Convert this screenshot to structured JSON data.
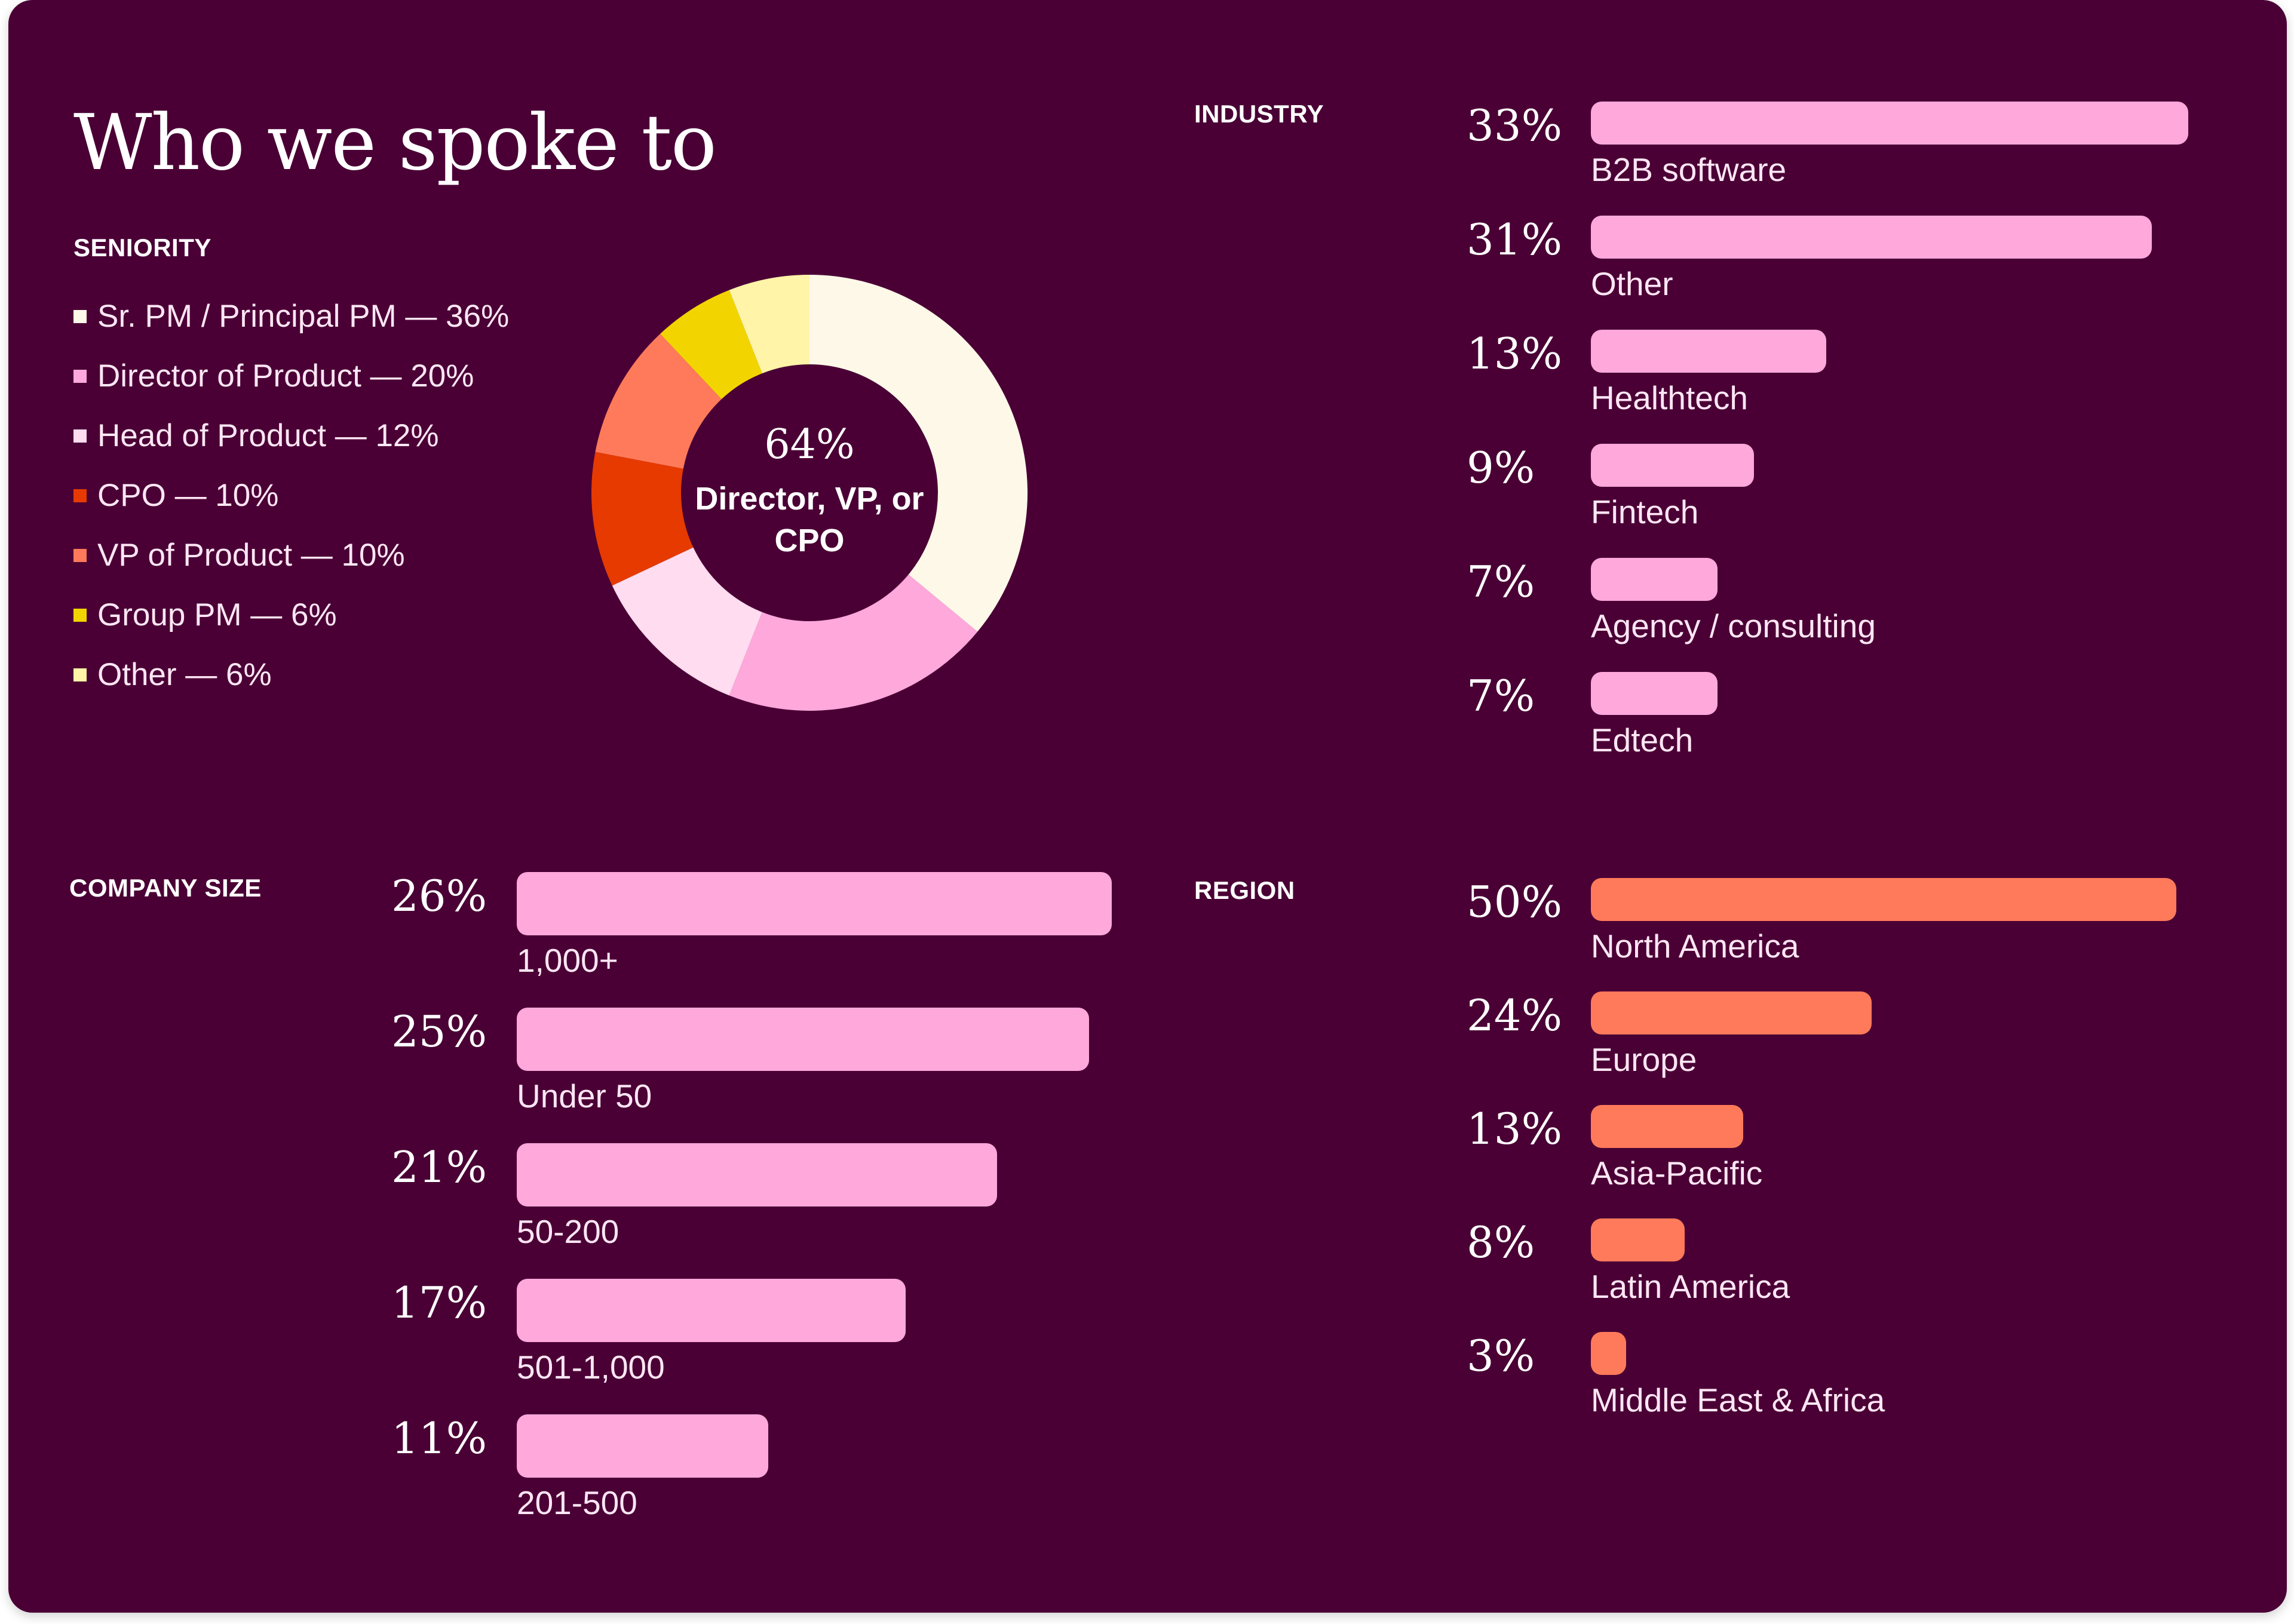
{
  "title": "Who we spoke to",
  "colors": {
    "background": "#4a0035",
    "bar_pink": "#ffa8dc",
    "bar_coral": "#ff7a5a"
  },
  "chart_data": [
    {
      "type": "pie",
      "label": "SENIORITY",
      "center_value": "64%",
      "center_label": "Director, VP, or CPO",
      "slices": [
        {
          "name": "Sr. PM / Principal PM",
          "value": 36,
          "legend": "Sr. PM / Principal PM — 36%",
          "color": "#fdf8e8"
        },
        {
          "name": "Director of Product",
          "value": 20,
          "legend": "Director of Product — 20%",
          "color": "#ffa8dc"
        },
        {
          "name": "Head of Product",
          "value": 12,
          "legend": "Head of Product — 12%",
          "color": "#ffdcef"
        },
        {
          "name": "CPO",
          "value": 10,
          "legend": "CPO — 10%",
          "color": "#e63a00"
        },
        {
          "name": "VP of Product",
          "value": 10,
          "legend": "VP of Product — 10%",
          "color": "#ff7a5a"
        },
        {
          "name": "Group PM",
          "value": 6,
          "legend": "Group PM — 6%",
          "color": "#f2d500"
        },
        {
          "name": "Other",
          "value": 6,
          "legend": "Other — 6%",
          "color": "#fff4a8"
        }
      ]
    },
    {
      "type": "bar",
      "label": "INDUSTRY",
      "color": "#ffa8dc",
      "items": [
        {
          "pct": "33%",
          "value": 33,
          "name": "B2B software"
        },
        {
          "pct": "31%",
          "value": 31,
          "name": "Other"
        },
        {
          "pct": "13%",
          "value": 13,
          "name": "Healthtech"
        },
        {
          "pct": "9%",
          "value": 9,
          "name": "Fintech"
        },
        {
          "pct": "7%",
          "value": 7,
          "name": "Agency / consulting"
        },
        {
          "pct": "7%",
          "value": 7,
          "name": "Edtech"
        }
      ]
    },
    {
      "type": "bar",
      "label": "COMPANY SIZE",
      "color": "#ffa8dc",
      "items": [
        {
          "pct": "26%",
          "value": 26,
          "name": "1,000+"
        },
        {
          "pct": "25%",
          "value": 25,
          "name": "Under 50"
        },
        {
          "pct": "21%",
          "value": 21,
          "name": "50-200"
        },
        {
          "pct": "17%",
          "value": 17,
          "name": "501-1,000"
        },
        {
          "pct": "11%",
          "value": 11,
          "name": "201-500"
        }
      ]
    },
    {
      "type": "bar",
      "label": "REGION",
      "color": "#ff7a5a",
      "items": [
        {
          "pct": "50%",
          "value": 50,
          "name": "North America"
        },
        {
          "pct": "24%",
          "value": 24,
          "name": "Europe"
        },
        {
          "pct": "13%",
          "value": 13,
          "name": "Asia-Pacific"
        },
        {
          "pct": "8%",
          "value": 8,
          "name": "Latin America"
        },
        {
          "pct": "3%",
          "value": 3,
          "name": "Middle East & Africa"
        }
      ]
    }
  ]
}
